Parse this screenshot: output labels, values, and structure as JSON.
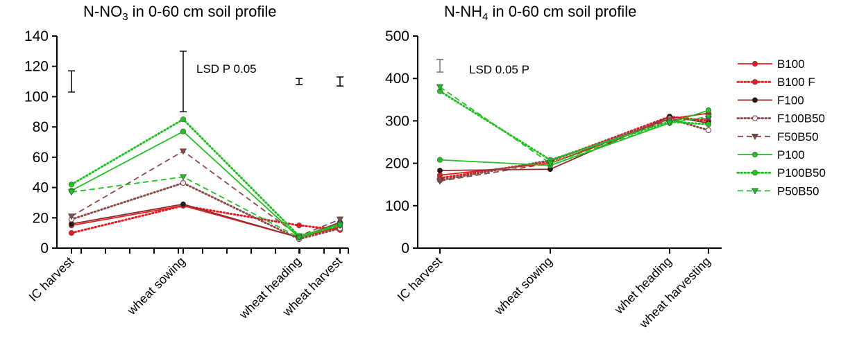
{
  "chart_data": [
    {
      "type": "line",
      "title": "N-NO3 in 0-60 cm soil profile",
      "title_parts": [
        "N-NO",
        "3",
        " in 0-60 cm soil profile"
      ],
      "xlabel": "",
      "ylabel": "",
      "categories": [
        "IC harvest",
        "wheat sowing",
        "wheat heading",
        "wheat harvest"
      ],
      "ylim": [
        0,
        140
      ],
      "yticks": [
        0,
        20,
        40,
        60,
        80,
        100,
        120,
        140
      ],
      "annotation": "LSD P 0.05",
      "lsd_bars": [
        {
          "at": "IC harvest",
          "low": 103,
          "high": 117
        },
        {
          "at": "wheat sowing",
          "low": 90,
          "high": 130
        },
        {
          "at": "wheat heading",
          "low": 108,
          "high": 112
        },
        {
          "at": "wheat harvest",
          "low": 107,
          "high": 113
        }
      ],
      "series": [
        {
          "name": "B100",
          "values": [
            15,
            28,
            7,
            14
          ]
        },
        {
          "name": "B100 F",
          "values": [
            10,
            28,
            15,
            12
          ]
        },
        {
          "name": "F100",
          "values": [
            16,
            29,
            7,
            17
          ]
        },
        {
          "name": "F100B50",
          "values": [
            19,
            43,
            6,
            13
          ]
        },
        {
          "name": "F50B50",
          "values": [
            21,
            64,
            8,
            19
          ]
        },
        {
          "name": "P100",
          "values": [
            38,
            77,
            7,
            16
          ]
        },
        {
          "name": "P100B50",
          "values": [
            42,
            85,
            8,
            15
          ]
        },
        {
          "name": "P50B50",
          "values": [
            37,
            47,
            7,
            15
          ]
        }
      ]
    },
    {
      "type": "line",
      "title": "N-NH4 in 0-60 cm soil profile",
      "title_parts": [
        "N-NH",
        "4",
        " in 0-60 cm soil profile"
      ],
      "xlabel": "",
      "ylabel": "",
      "categories": [
        "IC harvest",
        "wheat sowing",
        "whet heading",
        "wheat harvesting"
      ],
      "ylim": [
        0,
        500
      ],
      "yticks": [
        0,
        100,
        200,
        300,
        400,
        500
      ],
      "annotation": "LSD 0.05 P",
      "lsd_bars": [
        {
          "at": "IC harvest",
          "low": 415,
          "high": 445
        }
      ],
      "series": [
        {
          "name": "B100",
          "values": [
            172,
            200,
            305,
            318
          ]
        },
        {
          "name": "B100 F",
          "values": [
            165,
            205,
            310,
            300
          ]
        },
        {
          "name": "F100",
          "values": [
            183,
            186,
            310,
            295
          ]
        },
        {
          "name": "F100B50",
          "values": [
            160,
            207,
            305,
            278
          ]
        },
        {
          "name": "F50B50",
          "values": [
            158,
            200,
            302,
            305
          ]
        },
        {
          "name": "P100",
          "values": [
            208,
            195,
            295,
            325
          ]
        },
        {
          "name": "P100B50",
          "values": [
            370,
            208,
            298,
            292
          ]
        },
        {
          "name": "P50B50",
          "values": [
            380,
            200,
            295,
            310
          ]
        }
      ]
    }
  ],
  "legend": {
    "placement": "right",
    "items": [
      {
        "name": "B100",
        "color": "#e8191e",
        "dash": "solid",
        "marker": "circle-filled"
      },
      {
        "name": "B100 F",
        "color": "#e8191e",
        "dash": "dotted",
        "marker": "circle-filled"
      },
      {
        "name": "F100",
        "color": "#8b2d2d",
        "dash": "solid",
        "marker": "circle-dark"
      },
      {
        "name": "F100B50",
        "color": "#8b4a4a",
        "dash": "dotted",
        "marker": "circle-open"
      },
      {
        "name": "F50B50",
        "color": "#8b4a4a",
        "dash": "dashed",
        "marker": "triangle-down"
      },
      {
        "name": "P100",
        "color": "#22c022",
        "dash": "solid",
        "marker": "circle-filled"
      },
      {
        "name": "P100B50",
        "color": "#22c022",
        "dash": "dotted",
        "marker": "circle-filled"
      },
      {
        "name": "P50B50",
        "color": "#22c022",
        "dash": "dashed",
        "marker": "triangle-down"
      }
    ]
  }
}
